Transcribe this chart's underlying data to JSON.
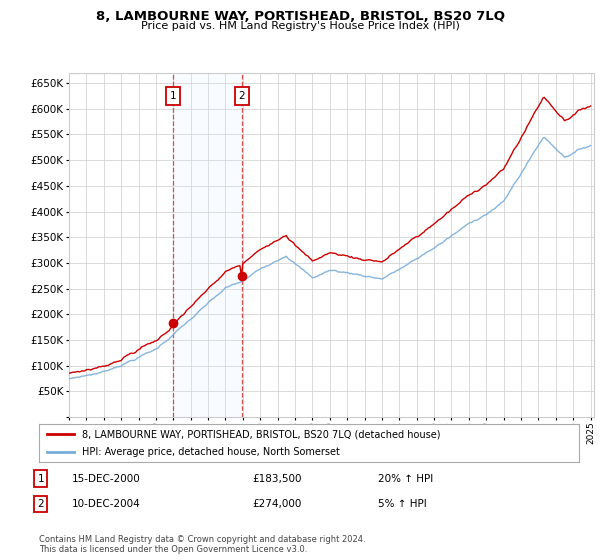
{
  "title": "8, LAMBOURNE WAY, PORTISHEAD, BRISTOL, BS20 7LQ",
  "subtitle": "Price paid vs. HM Land Registry's House Price Index (HPI)",
  "y_ticks": [
    0,
    50000,
    100000,
    150000,
    200000,
    250000,
    300000,
    350000,
    400000,
    450000,
    500000,
    550000,
    600000,
    650000
  ],
  "sale1_year": 2001.0,
  "sale1_price": 183500,
  "sale2_year": 2004.95,
  "sale2_price": 274000,
  "legend_line1": "8, LAMBOURNE WAY, PORTISHEAD, BRISTOL, BS20 7LQ (detached house)",
  "legend_line2": "HPI: Average price, detached house, North Somerset",
  "footer": "Contains HM Land Registry data © Crown copyright and database right 2024.\nThis data is licensed under the Open Government Licence v3.0.",
  "hpi_color": "#7aaddb",
  "price_color": "#cc0000",
  "shade_color": "#ddeeff",
  "grid_color": "#cccccc",
  "bg_color": "#ffffff"
}
